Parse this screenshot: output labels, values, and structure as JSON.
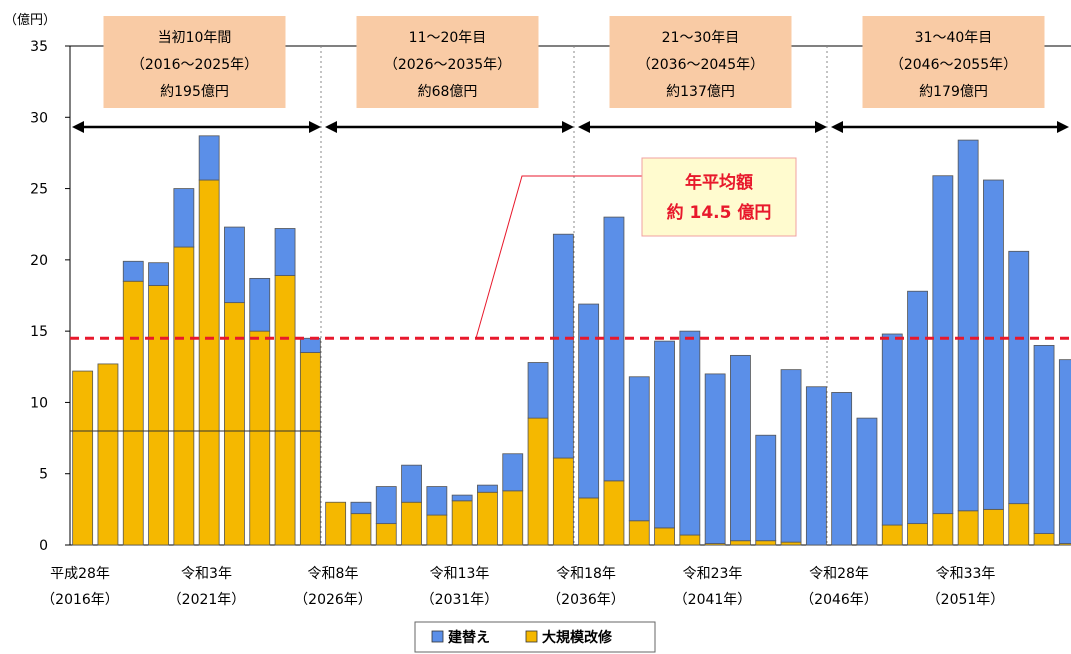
{
  "colors": {
    "rebuild": "#5B8FE8",
    "renovation": "#F5B800",
    "average_line": "#E8192C",
    "period_box": "#F9CBA5",
    "callout_box": "#FFFBCF",
    "callout_text": "#E8192C"
  },
  "chart_data": {
    "type": "bar",
    "stacked": true,
    "unit_label": "（億円）",
    "ylim": [
      0,
      35
    ],
    "yticks": [
      0,
      5,
      10,
      15,
      20,
      25,
      30,
      35
    ],
    "grid": false,
    "legend_position": "bottom-center",
    "x_tick_labels": [
      {
        "year": 2016,
        "era": "平成28年",
        "western": "（2016年）"
      },
      {
        "year": 2021,
        "era": "令和3年",
        "western": "（2021年）"
      },
      {
        "year": 2026,
        "era": "令和8年",
        "western": "（2026年）"
      },
      {
        "year": 2031,
        "era": "令和13年",
        "western": "（2031年）"
      },
      {
        "year": 2036,
        "era": "令和18年",
        "western": "（2036年）"
      },
      {
        "year": 2041,
        "era": "令和23年",
        "western": "（2041年）"
      },
      {
        "year": 2046,
        "era": "令和28年",
        "western": "（2046年）"
      },
      {
        "year": 2051,
        "era": "令和33年",
        "western": "（2051年）"
      }
    ],
    "years": [
      2016,
      2017,
      2018,
      2019,
      2020,
      2021,
      2022,
      2023,
      2024,
      2025,
      2026,
      2027,
      2028,
      2029,
      2030,
      2031,
      2032,
      2033,
      2034,
      2035,
      2036,
      2037,
      2038,
      2039,
      2040,
      2041,
      2042,
      2043,
      2044,
      2045,
      2046,
      2047,
      2048,
      2049,
      2050,
      2051,
      2052,
      2053,
      2054,
      2055
    ],
    "series": [
      {
        "name": "大規模改修",
        "key": "renovation",
        "values": [
          12.2,
          12.7,
          18.5,
          18.2,
          20.9,
          25.6,
          17.0,
          15.0,
          18.9,
          13.5,
          3.0,
          2.2,
          1.5,
          3.0,
          2.1,
          3.1,
          3.7,
          3.8,
          8.9,
          6.1,
          3.3,
          4.5,
          1.7,
          1.2,
          0.7,
          0.1,
          0.3,
          0.3,
          0.2,
          0.0,
          0.0,
          0.0,
          1.4,
          1.5,
          2.2,
          2.4,
          2.5,
          2.9,
          0.8,
          0.1
        ]
      },
      {
        "name": "建替え",
        "key": "rebuild",
        "values": [
          0.0,
          0.0,
          1.4,
          1.6,
          4.1,
          3.1,
          5.3,
          3.7,
          3.3,
          1.0,
          0.0,
          0.8,
          2.6,
          2.6,
          2.0,
          0.4,
          0.5,
          2.6,
          3.9,
          15.7,
          13.6,
          18.5,
          10.1,
          13.1,
          14.3,
          11.9,
          13.0,
          7.4,
          12.1,
          11.1,
          10.7,
          8.9,
          13.4,
          16.3,
          23.7,
          26.0,
          23.1,
          17.7,
          13.2,
          12.9
        ]
      }
    ],
    "average": {
      "value": 14.5,
      "label_line1": "年平均額",
      "label_line2": "約 14.5 億円"
    },
    "segment_line_value": 8.0,
    "periods": [
      {
        "start": 2016,
        "end": 2025,
        "line1": "当初10年間",
        "line2": "（2016～2025年）",
        "line3": "約195億円"
      },
      {
        "start": 2026,
        "end": 2035,
        "line1": "11～20年目",
        "line2": "（2026～2035年）",
        "line3": "約68億円"
      },
      {
        "start": 2036,
        "end": 2045,
        "line1": "21～30年目",
        "line2": "（2036～2045年）",
        "line3": "約137億円"
      },
      {
        "start": 2046,
        "end": 2055,
        "line1": "31～40年目",
        "line2": "（2046～2055年）",
        "line3": "約179億円"
      }
    ],
    "legend": [
      {
        "key": "rebuild",
        "label": "建替え"
      },
      {
        "key": "renovation",
        "label": "大規模改修"
      }
    ]
  }
}
